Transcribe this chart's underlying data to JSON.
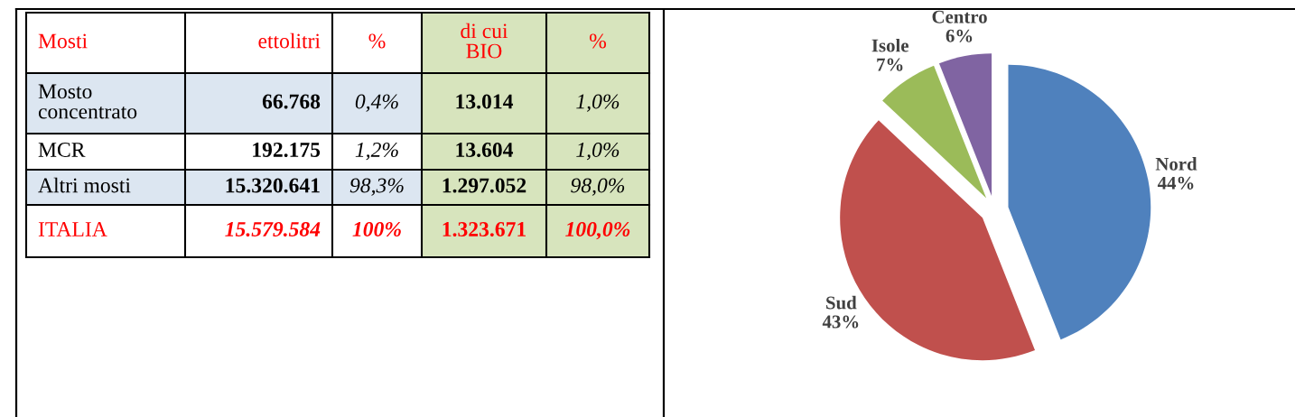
{
  "chart_data": [
    {
      "type": "other",
      "ylabel": "Mosti",
      "categories": [
        "ettolitri",
        "%",
        "di cui\nBIO",
        "%"
      ],
      "y_categories": [
        "Mosto\nconcentrato",
        "MCR",
        "Altri mosti",
        "ITALIA"
      ],
      "cells": [
        [
          "66.768",
          "0,4%",
          "13.014",
          "1,0%"
        ],
        [
          "192.175",
          "1,2%",
          "13.604",
          "1,0%"
        ],
        [
          "15.320.641",
          "98,3%",
          "1.297.052",
          "98,0%"
        ],
        [
          "15.579.584",
          "100%",
          "1.323.671",
          "100,0%"
        ]
      ]
    },
    {
      "type": "pie",
      "categories": [
        "Nord",
        "Sud",
        "Isole",
        "Centro"
      ],
      "values": [
        44,
        43,
        7,
        6
      ],
      "colors": [
        "#4f81bd",
        "#c0504d",
        "#9bbb59",
        "#8064a2"
      ],
      "value_labels": [
        "44%",
        "43%",
        "7%",
        "6%"
      ]
    }
  ]
}
